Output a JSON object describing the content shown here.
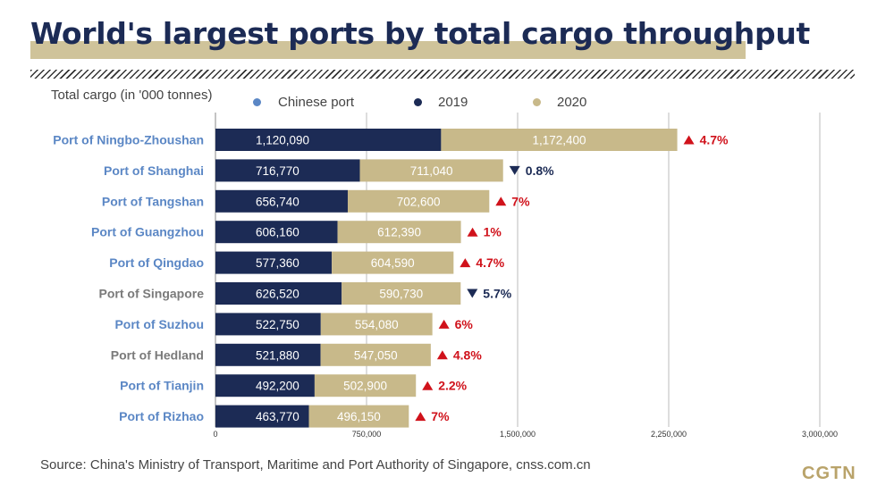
{
  "title": "World's largest ports by total cargo throughput",
  "source": "Source: China's Ministry of Transport, Maritime and Port Authority of Singapore, cnss.com.cn",
  "logo": "CGTN",
  "colors": {
    "title": "#1c2b55",
    "highlight_band": "#cfc39a",
    "chinese_port": "#5b87c5",
    "other_port": "#7a7a7a",
    "bar_2019": "#1c2b55",
    "bar_2020": "#c8b98a",
    "increase": "#d0121b",
    "decrease": "#1c2b55"
  },
  "legend": {
    "axis_label": "Total cargo (in '000 tonnes)",
    "chinese_port": "Chinese port",
    "y2019": "2019",
    "y2020": "2020"
  },
  "chart_data": {
    "type": "bar",
    "orientation": "horizontal",
    "stacked": true,
    "title": "World's largest ports by total cargo throughput",
    "xlabel": "Total cargo (in '000 tonnes)",
    "xlim": [
      0,
      3000000
    ],
    "xticks": [
      0,
      750000,
      1500000,
      2250000,
      3000000
    ],
    "xtick_labels": [
      "0",
      "750,000",
      "1,500,000",
      "2,250,000",
      "3,000,000"
    ],
    "grid": true,
    "categories": [
      "Port of Ningbo-Zhoushan",
      "Port of Shanghai",
      "Port of Tangshan",
      "Port of Guangzhou",
      "Port of Qingdao",
      "Port of Singapore",
      "Port of Suzhou",
      "Port of Hedland",
      "Port of Tianjin",
      "Port of Rizhao"
    ],
    "chinese_port": [
      true,
      true,
      true,
      true,
      true,
      false,
      true,
      false,
      true,
      true
    ],
    "series": [
      {
        "name": "2019",
        "values": [
          1120090,
          716770,
          656740,
          606160,
          577360,
          626520,
          522750,
          521880,
          492200,
          463770
        ],
        "labels": [
          "1,120,090",
          "716,770",
          "656,740",
          "606,160",
          "577,360",
          "626,520",
          "522,750",
          "521,880",
          "492,200",
          "463,770"
        ]
      },
      {
        "name": "2020",
        "values": [
          1172400,
          711040,
          702600,
          612390,
          604590,
          590730,
          554080,
          547050,
          502900,
          496150
        ],
        "labels": [
          "1,172,400",
          "711,040",
          "702,600",
          "612,390",
          "604,590",
          "590,730",
          "554,080",
          "547,050",
          "502,900",
          "496,150"
        ]
      }
    ],
    "changes": [
      {
        "direction": "up",
        "label": "4.7%"
      },
      {
        "direction": "down",
        "label": "0.8%"
      },
      {
        "direction": "up",
        "label": "7%"
      },
      {
        "direction": "up",
        "label": "1%"
      },
      {
        "direction": "up",
        "label": "4.7%"
      },
      {
        "direction": "down",
        "label": "5.7%"
      },
      {
        "direction": "up",
        "label": "6%"
      },
      {
        "direction": "up",
        "label": "4.8%"
      },
      {
        "direction": "up",
        "label": "2.2%"
      },
      {
        "direction": "up",
        "label": "7%"
      }
    ]
  }
}
